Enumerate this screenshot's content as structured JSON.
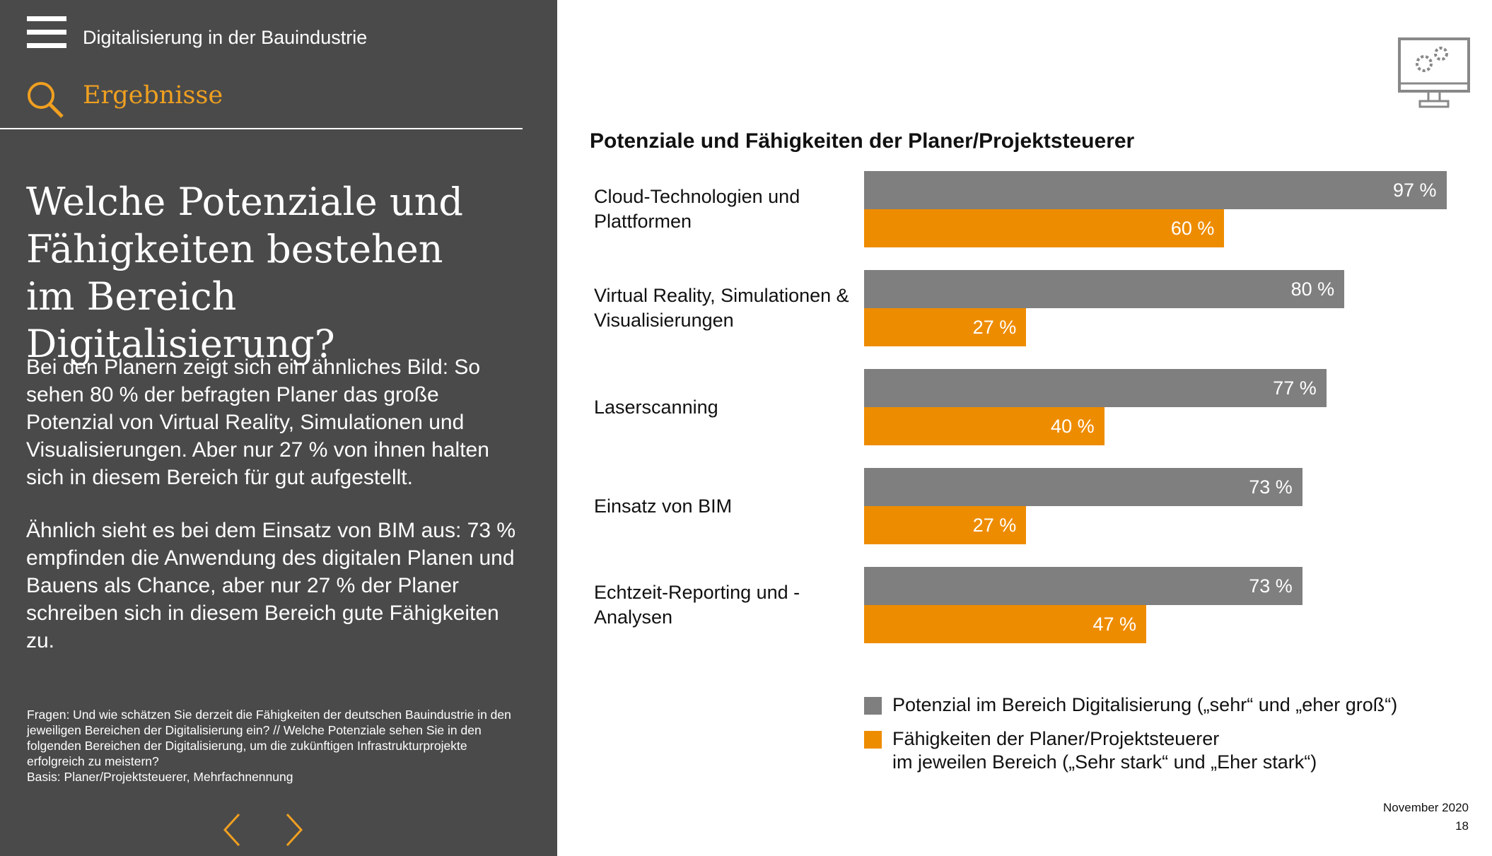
{
  "header": {
    "title": "Digitalisierung in der Bauindustrie",
    "section": "Ergebnisse"
  },
  "heading": "Welche Potenziale und Fähigkeiten bestehen im Bereich Digitalisierung?",
  "paragraphs": [
    "Bei den Planern zeigt sich ein ähnliches Bild: So sehen 80 % der befragten Planer das große Potenzial von Virtual Reality, Simulationen und Visualisierungen. Aber nur 27 % von ihnen halten sich in diesem Bereich für gut aufgestellt.",
    "Ähnlich sieht es bei dem Einsatz von BIM aus: 73 % empfinden die Anwendung des digitalen Planen und Bauens als Chance, aber nur 27 % der Planer schreiben sich in diesem Bereich gute Fähigkeiten zu."
  ],
  "footnote": [
    "Fragen: Und wie schätzen Sie derzeit die Fähigkeiten der deutschen Bauindustrie in den jeweiligen Bereichen der Digitalisierung ein? // Welche Potenziale sehen Sie in den folgenden Bereichen der Digitalisierung, um die zukünftigen Infrastrukturprojekte erfolgreich zu meistern?",
    "Basis: Planer/Projektsteuerer, Mehrfachnennung"
  ],
  "footer": {
    "date": "November 2020",
    "page": "18"
  },
  "chart_data": {
    "type": "bar",
    "orientation": "horizontal",
    "title": "Potenziale und Fähigkeiten der Planer/Projektsteuerer",
    "categories": [
      "Cloud-Technologien und Plattformen",
      "Virtual Reality, Simulationen & Visualisierungen",
      "Laserscanning",
      "Einsatz von BIM",
      "Echtzeit-Reporting und -Analysen"
    ],
    "xlim": [
      0,
      100
    ],
    "series": [
      {
        "name": "Potenzial im Bereich Digitalisierung („sehr“ und „eher groß“)",
        "color": "#7f7f7f",
        "values": [
          97,
          80,
          77,
          73,
          73
        ],
        "value_labels": [
          "97 %",
          "80 %",
          "77 %",
          "73 %",
          "73 %"
        ]
      },
      {
        "name": "Fähigkeiten der Planer/Projektsteuerer\nim jeweilen Bereich („Sehr stark“ und „Eher stark“)",
        "color": "#ee8c00",
        "values": [
          60,
          27,
          40,
          27,
          47
        ],
        "value_labels": [
          "60 %",
          "27 %",
          "40 %",
          "27 %",
          "47 %"
        ]
      }
    ]
  }
}
